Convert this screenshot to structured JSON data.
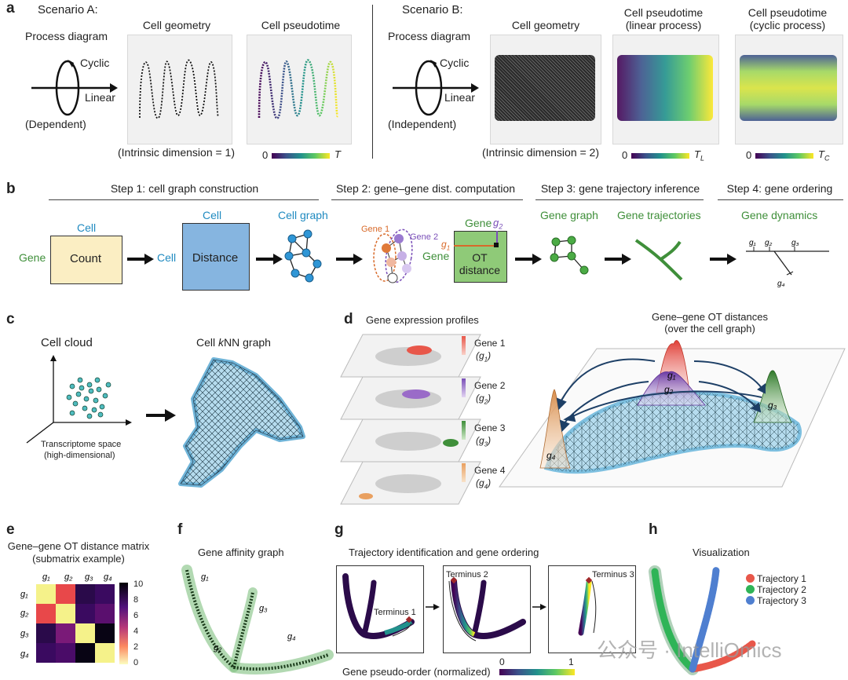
{
  "panels": {
    "a": "a",
    "b": "b",
    "c": "c",
    "d": "d",
    "e": "e",
    "f": "f",
    "g": "g",
    "h": "h"
  },
  "a": {
    "scenarioA": "Scenario A:",
    "scenarioB": "Scenario B:",
    "process_diagram": "Process diagram",
    "cyclic": "Cyclic",
    "linear": "Linear",
    "dependent": "(Dependent)",
    "independent": "(Independent)",
    "cell_geometry": "Cell geometry",
    "cell_pseudotime": "Cell pseudotime",
    "cell_pseudotime_linear_1": "Cell pseudotime",
    "cell_pseudotime_linear_2": "(linear process)",
    "cell_pseudotime_cyclic_1": "Cell pseudotime",
    "cell_pseudotime_cyclic_2": "(cyclic process)",
    "intrinsic_1": "(Intrinsic dimension = 1)",
    "intrinsic_2": "(Intrinsic dimension = 2)",
    "cb_zero": "0",
    "cb_T": "T",
    "cb_TL": "T",
    "cb_TL_sub": "L",
    "cb_TC": "T",
    "cb_TC_sub": "C"
  },
  "b": {
    "step1": "Step 1: cell graph construction",
    "step2": "Step 2: gene–gene dist. computation",
    "step3": "Step 3: gene trajectory inference",
    "step4": "Step 4: gene ordering",
    "cell": "Cell",
    "gene": "Gene",
    "count": "Count",
    "distance": "Distance",
    "cell_graph": "Cell graph",
    "gene1": "Gene 1",
    "gene2": "Gene 2",
    "ot": "OT",
    "ot_distance": "distance",
    "g1": "g",
    "g2": "g",
    "gene_graph": "Gene graph",
    "gene_trajectories": "Gene trajectories",
    "gene_dynamics": "Gene dynamics"
  },
  "c": {
    "cell_cloud": "Cell cloud",
    "knn_prefix": "Cell ",
    "knn_k": "k",
    "knn_suffix": "NN graph",
    "transcriptome_1": "Transcriptome space",
    "transcriptome_2": "(high-dimensional)"
  },
  "d": {
    "profiles_title": "Gene expression profiles",
    "ot_title_1": "Gene–gene OT distances",
    "ot_title_2": "(over the cell graph)",
    "layers": [
      {
        "name": "Gene 1",
        "sym": "(g",
        "sub": "1",
        "close": ")",
        "color": "#e8574a"
      },
      {
        "name": "Gene 2",
        "sym": "(g",
        "sub": "2",
        "close": ")",
        "color": "#9a6bc8"
      },
      {
        "name": "Gene 3",
        "sym": "(g",
        "sub": "3",
        "close": ")",
        "color": "#3f8f3a"
      },
      {
        "name": "Gene 4",
        "sym": "(g",
        "sub": "4",
        "close": ")",
        "color": "#e9a060"
      }
    ]
  },
  "e": {
    "title_1": "Gene–gene OT distance matrix",
    "title_2": "(submatrix example)",
    "genes": [
      "g1",
      "g2",
      "g3",
      "g4"
    ],
    "colorbar_ticks": [
      "10",
      "8",
      "6",
      "4",
      "2",
      "0"
    ]
  },
  "f": {
    "title": "Gene affinity graph"
  },
  "g": {
    "title": "Trajectory identification and gene ordering",
    "terminus1": "Terminus 1",
    "terminus2": "Terminus 2",
    "terminus3": "Terminus 3",
    "cb_label": "Gene pseudo-order (normalized)",
    "cb_zero": "0",
    "cb_one": "1"
  },
  "h": {
    "title": "Visualization",
    "legend": [
      {
        "label": "Trajectory 1",
        "color": "#e8574a"
      },
      {
        "label": "Trajectory 2",
        "color": "#2fb457"
      },
      {
        "label": "Trajectory 3",
        "color": "#4f7fd0"
      }
    ]
  },
  "watermark": "公众号 · IntelliOmics"
}
